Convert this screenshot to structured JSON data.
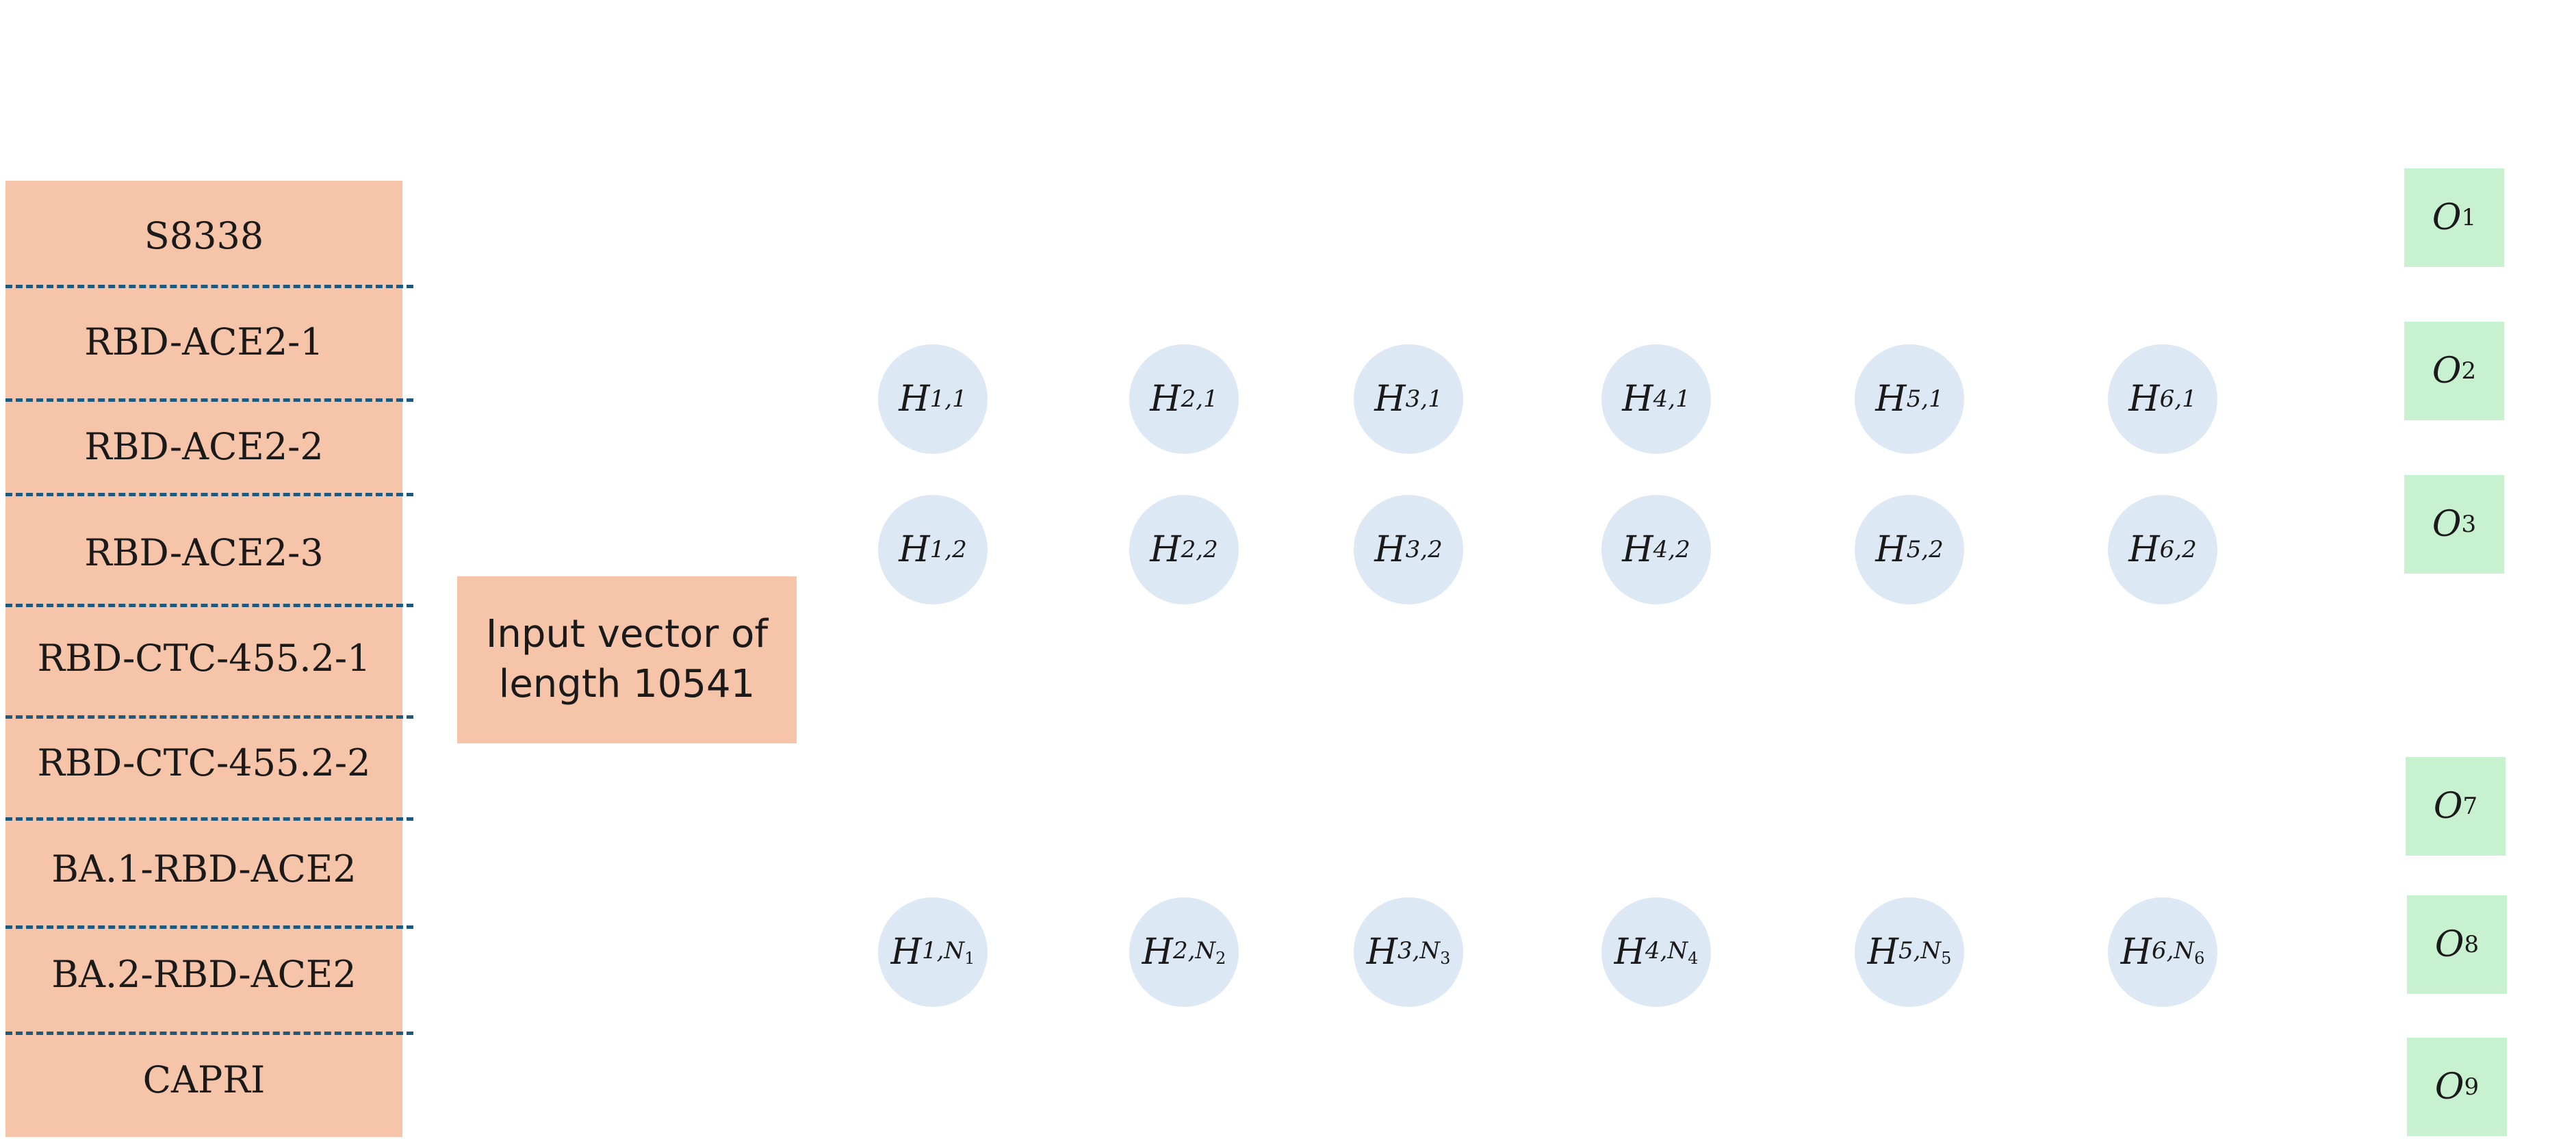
{
  "datasets": [
    "S8338",
    "RBD-ACE2-1",
    "RBD-ACE2-2",
    "RBD-ACE2-3",
    "RBD-CTC-455.2-1",
    "RBD-CTC-455.2-2",
    "BA.1-RBD-ACE2",
    "BA.2-RBD-ACE2",
    "CAPRI"
  ],
  "input_vector": {
    "label": "Input vector of length 10541"
  },
  "hidden_nodes": [
    {
      "var": "H",
      "sub": "1,1"
    },
    {
      "var": "H",
      "sub": "2,1"
    },
    {
      "var": "H",
      "sub": "3,1"
    },
    {
      "var": "H",
      "sub": "4,1"
    },
    {
      "var": "H",
      "sub": "5,1"
    },
    {
      "var": "H",
      "sub": "6,1"
    },
    {
      "var": "H",
      "sub": "1,2"
    },
    {
      "var": "H",
      "sub": "2,2"
    },
    {
      "var": "H",
      "sub": "3,2"
    },
    {
      "var": "H",
      "sub": "4,2"
    },
    {
      "var": "H",
      "sub": "5,2"
    },
    {
      "var": "H",
      "sub": "6,2"
    },
    {
      "var": "H",
      "sub": "1,N1"
    },
    {
      "var": "H",
      "sub": "2,N2"
    },
    {
      "var": "H",
      "sub": "3,N3"
    },
    {
      "var": "H",
      "sub": "4,N4"
    },
    {
      "var": "H",
      "sub": "5,N5"
    },
    {
      "var": "H",
      "sub": "6,N6"
    }
  ],
  "outputs": [
    {
      "var": "O",
      "sub": "1"
    },
    {
      "var": "O",
      "sub": "2"
    },
    {
      "var": "O",
      "sub": "3"
    },
    {
      "var": "O",
      "sub": "7"
    },
    {
      "var": "O",
      "sub": "8"
    },
    {
      "var": "O",
      "sub": "9"
    }
  ],
  "colors": {
    "dataset_fill": "#f5c4a9",
    "divider": "#1d5a7e",
    "hidden_node_fill": "#dde8f5",
    "output_fill": "#c8f1d0"
  }
}
